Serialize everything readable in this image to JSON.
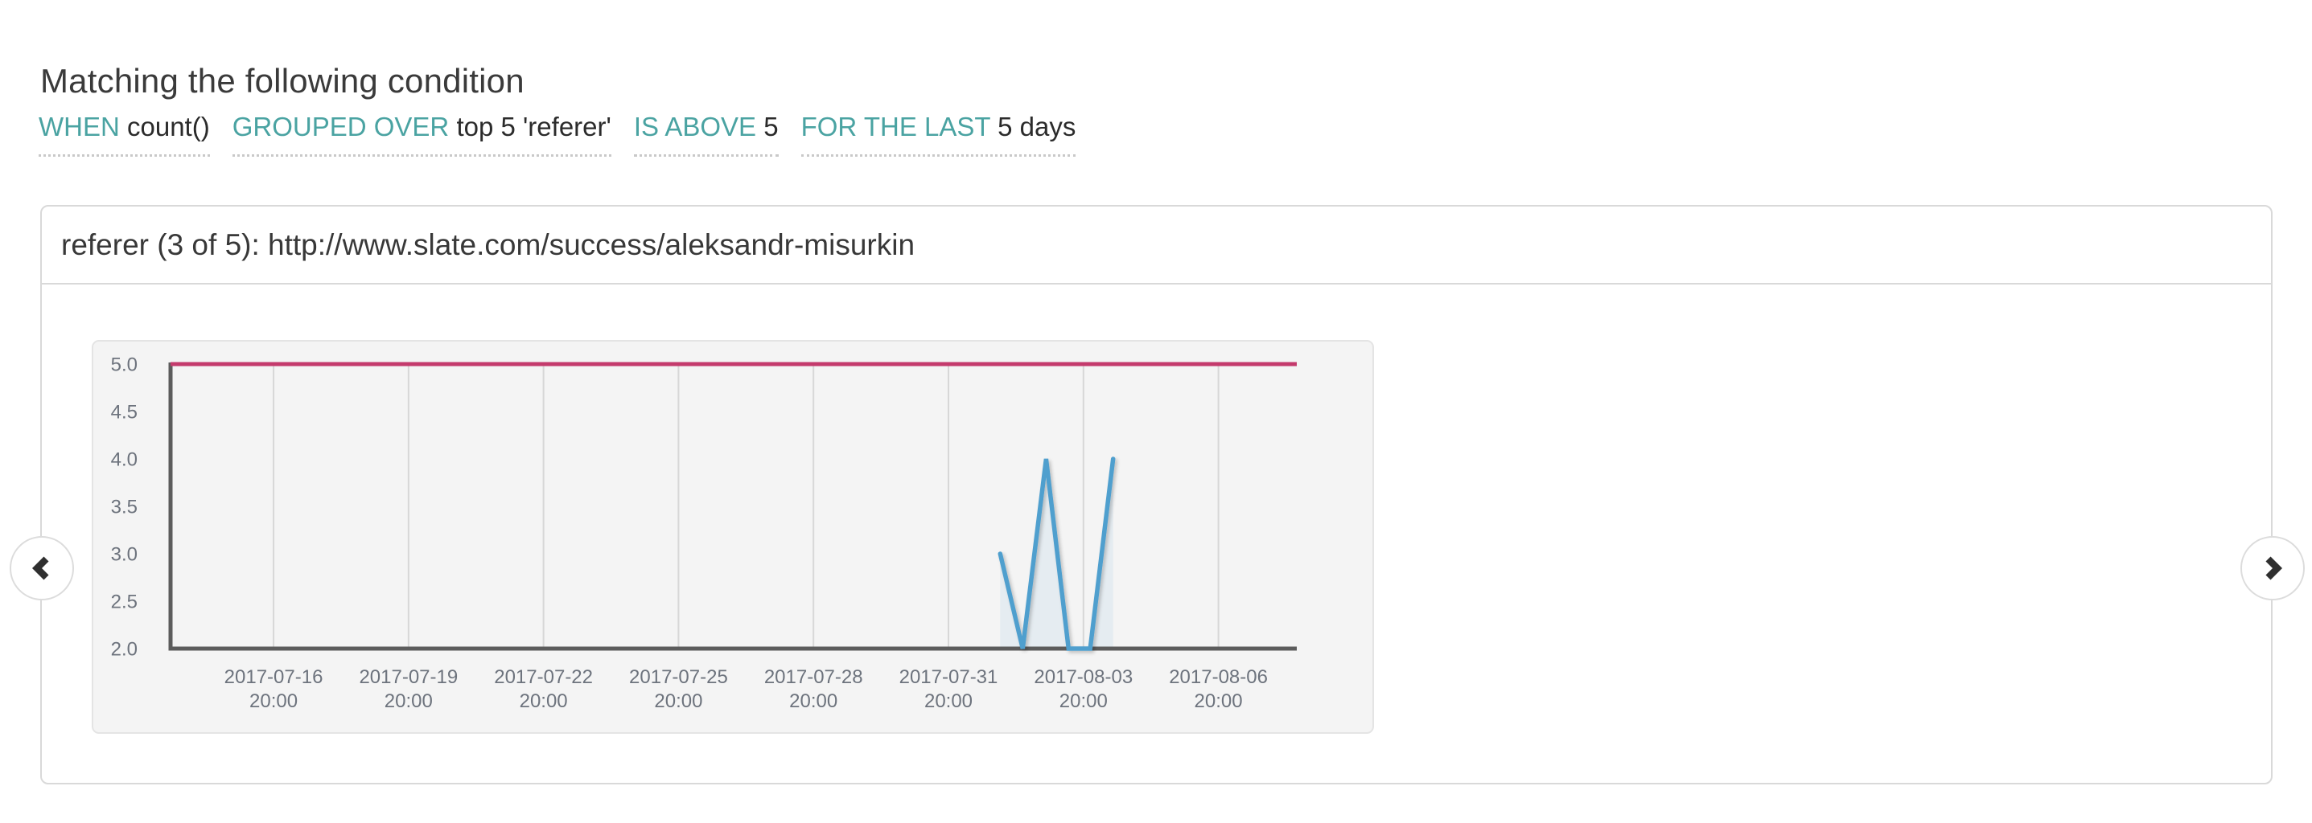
{
  "page": {
    "title": "Matching the following condition"
  },
  "condition": {
    "items": [
      {
        "keyword": "WHEN",
        "value": "count()"
      },
      {
        "keyword": "GROUPED OVER",
        "value": "top 5 'referer'"
      },
      {
        "keyword": "IS ABOVE",
        "value": "5"
      },
      {
        "keyword": "FOR THE LAST",
        "value": "5 days"
      }
    ]
  },
  "panel": {
    "header": "referer (3 of 5): http://www.slate.com/success/aleksandr-misurkin"
  },
  "pager": {
    "prev_icon": "chevron-left-icon",
    "next_icon": "chevron-right-icon"
  },
  "colors": {
    "accent_teal": "#4aa3a2",
    "threshold_line": "#c43a6c",
    "series_line": "#4f9fce",
    "series_fill": "rgba(79,159,206,0.09)",
    "axis_line": "#5c5c5c",
    "grid_line": "#d7d7d7",
    "tick_text": "#6d737d"
  },
  "chart_data": {
    "type": "line",
    "title": "referer (3 of 5): http://www.slate.com/success/aleksandr-misurkin",
    "xlabel": "",
    "ylabel": "",
    "grid": "vertical-only",
    "legend": "none",
    "x_axis": {
      "kind": "time",
      "anchor_tick": "2017-07-31 20:00",
      "tick_interval_days": 3,
      "domain_days": [
        -17.3,
        7.7
      ],
      "ticks": [
        {
          "date": "2017-07-16",
          "time": "20:00",
          "d": -15
        },
        {
          "date": "2017-07-19",
          "time": "20:00",
          "d": -12
        },
        {
          "date": "2017-07-22",
          "time": "20:00",
          "d": -9
        },
        {
          "date": "2017-07-25",
          "time": "20:00",
          "d": -6
        },
        {
          "date": "2017-07-28",
          "time": "20:00",
          "d": -3
        },
        {
          "date": "2017-07-31",
          "time": "20:00",
          "d": 0
        },
        {
          "date": "2017-08-03",
          "time": "20:00",
          "d": 3
        },
        {
          "date": "2017-08-06",
          "time": "20:00",
          "d": 6
        }
      ]
    },
    "y_axis": {
      "lim": [
        2.0,
        5.0
      ],
      "ticks": [
        5.0,
        4.5,
        4.0,
        3.5,
        3.0,
        2.5,
        2.0
      ]
    },
    "threshold": {
      "value": 5.0,
      "description": "alert threshold (IS ABOVE 5)"
    },
    "series": [
      {
        "name": "count() over top 5 'referer'",
        "points": [
          {
            "d": 1.15,
            "v": 3
          },
          {
            "d": 1.65,
            "v": 2
          },
          {
            "d": 2.17,
            "v": 4
          },
          {
            "d": 2.67,
            "v": 2
          },
          {
            "d": 3.15,
            "v": 2
          },
          {
            "d": 3.66,
            "v": 4
          }
        ]
      }
    ]
  }
}
